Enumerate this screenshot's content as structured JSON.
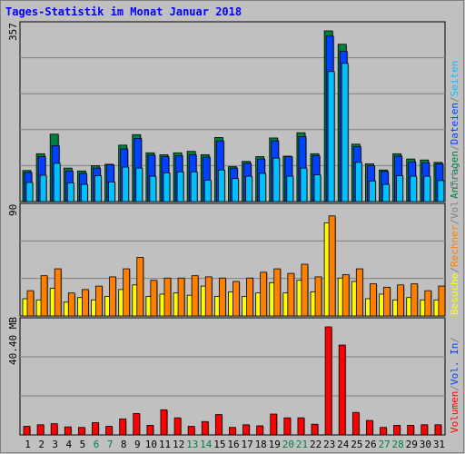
{
  "title": "Tages-Statistik im Monat Januar 2018",
  "panels": {
    "top": {
      "max_label": "357",
      "legend": [
        {
          "text": "Anfragen",
          "color": "#008040"
        },
        {
          "text": "/",
          "color": "#808080"
        },
        {
          "text": "Dateien",
          "color": "#0040ff"
        },
        {
          "text": "/",
          "color": "#808080"
        },
        {
          "text": "Seiten",
          "color": "#00c0ff"
        }
      ]
    },
    "middle": {
      "max_label": "90",
      "legend": [
        {
          "text": "Besuche",
          "color": "#ffff00"
        },
        {
          "text": "/",
          "color": "#808080"
        },
        {
          "text": "Rechner",
          "color": "#ff8000"
        },
        {
          "text": "/",
          "color": "#808080"
        },
        {
          "text": "Vol. Out",
          "color": "#808080"
        },
        {
          "text": "/",
          "color": "#808080"
        }
      ]
    },
    "bottom": {
      "max_label": "40.40 MB",
      "legend": [
        {
          "text": "Volumen",
          "color": "#ff0000"
        },
        {
          "text": "/",
          "color": "#808080"
        },
        {
          "text": "Vol. In",
          "color": "#0040ff"
        },
        {
          "text": "/",
          "color": "#808080"
        }
      ]
    }
  },
  "chart_data": {
    "type": "bar",
    "x": [
      "1",
      "2",
      "3",
      "4",
      "5",
      "6",
      "7",
      "8",
      "9",
      "10",
      "11",
      "12",
      "13",
      "14",
      "15",
      "16",
      "17",
      "18",
      "19",
      "20",
      "21",
      "22",
      "23",
      "24",
      "25",
      "26",
      "27",
      "28",
      "29",
      "30",
      "31"
    ],
    "weekend_days": [
      "6",
      "7",
      "13",
      "14",
      "20",
      "21",
      "27",
      "28"
    ],
    "colors": {
      "Anfragen": "#008040",
      "Dateien": "#0040ff",
      "Seiten": "#00c0ff",
      "Besuche": "#ffff00",
      "Rechner": "#ff8000",
      "Volumen": "#ff0000",
      "weekday_label": "#000000",
      "weekend_label": "#008040"
    },
    "panels": [
      {
        "id": "top",
        "ylim": [
          0,
          357
        ],
        "series": [
          {
            "name": "Anfragen",
            "values": [
              65,
              100,
              141,
              70,
              64,
              75,
              78,
              118,
              140,
              102,
              98,
              102,
              105,
              98,
              134,
              73,
              84,
              94,
              133,
              95,
              144,
              100,
              357,
              329,
              120,
              79,
              66,
              100,
              89,
              87,
              82
            ]
          },
          {
            "name": "Dateien",
            "values": [
              61,
              94,
              117,
              64,
              59,
              70,
              77,
              110,
              132,
              97,
              94,
              96,
              98,
              93,
              127,
              70,
              80,
              89,
              127,
              94,
              136,
              96,
              346,
              314,
              115,
              75,
              63,
              95,
              83,
              81,
              79
            ]
          },
          {
            "name": "Seiten",
            "values": [
              40,
              55,
              80,
              39,
              36,
              54,
              41,
              72,
              70,
              53,
              60,
              62,
              62,
              45,
              66,
              48,
              53,
              59,
              91,
              53,
              70,
              56,
              272,
              289,
              82,
              43,
              36,
              54,
              53,
              53,
              44
            ]
          }
        ]
      },
      {
        "id": "middle",
        "ylim": [
          0,
          90
        ],
        "series": [
          {
            "name": "Besuche",
            "values": [
              15,
              14,
              24,
              12,
              16,
              14,
              17,
              23,
              27,
              17,
              19,
              20,
              18,
              26,
              17,
              21,
              17,
              20,
              29,
              20,
              31,
              21,
              81,
              33,
              30,
              15,
              19,
              14,
              16,
              14,
              14
            ]
          },
          {
            "name": "Rechner",
            "values": [
              22,
              35,
              41,
              20,
              23,
              26,
              34,
              41,
              51,
              31,
              33,
              33,
              35,
              34,
              33,
              30,
              33,
              38,
              41,
              37,
              45,
              34,
              87,
              36,
              41,
              28,
              25,
              27,
              28,
              22,
              26
            ]
          }
        ]
      },
      {
        "id": "bottom",
        "ylim": [
          0,
          40.4
        ],
        "series": [
          {
            "name": "Volumen",
            "values": [
              3.2,
              3.8,
              4.2,
              3.0,
              2.8,
              4.6,
              3.2,
              6.0,
              8.0,
              3.6,
              9.4,
              6.4,
              3.2,
              5.0,
              7.6,
              2.8,
              3.8,
              3.4,
              7.8,
              6.4,
              6.4,
              4.0,
              40.4,
              33.6,
              8.4,
              5.4,
              2.8,
              3.6,
              3.6,
              3.8,
              3.8
            ]
          }
        ]
      }
    ]
  }
}
